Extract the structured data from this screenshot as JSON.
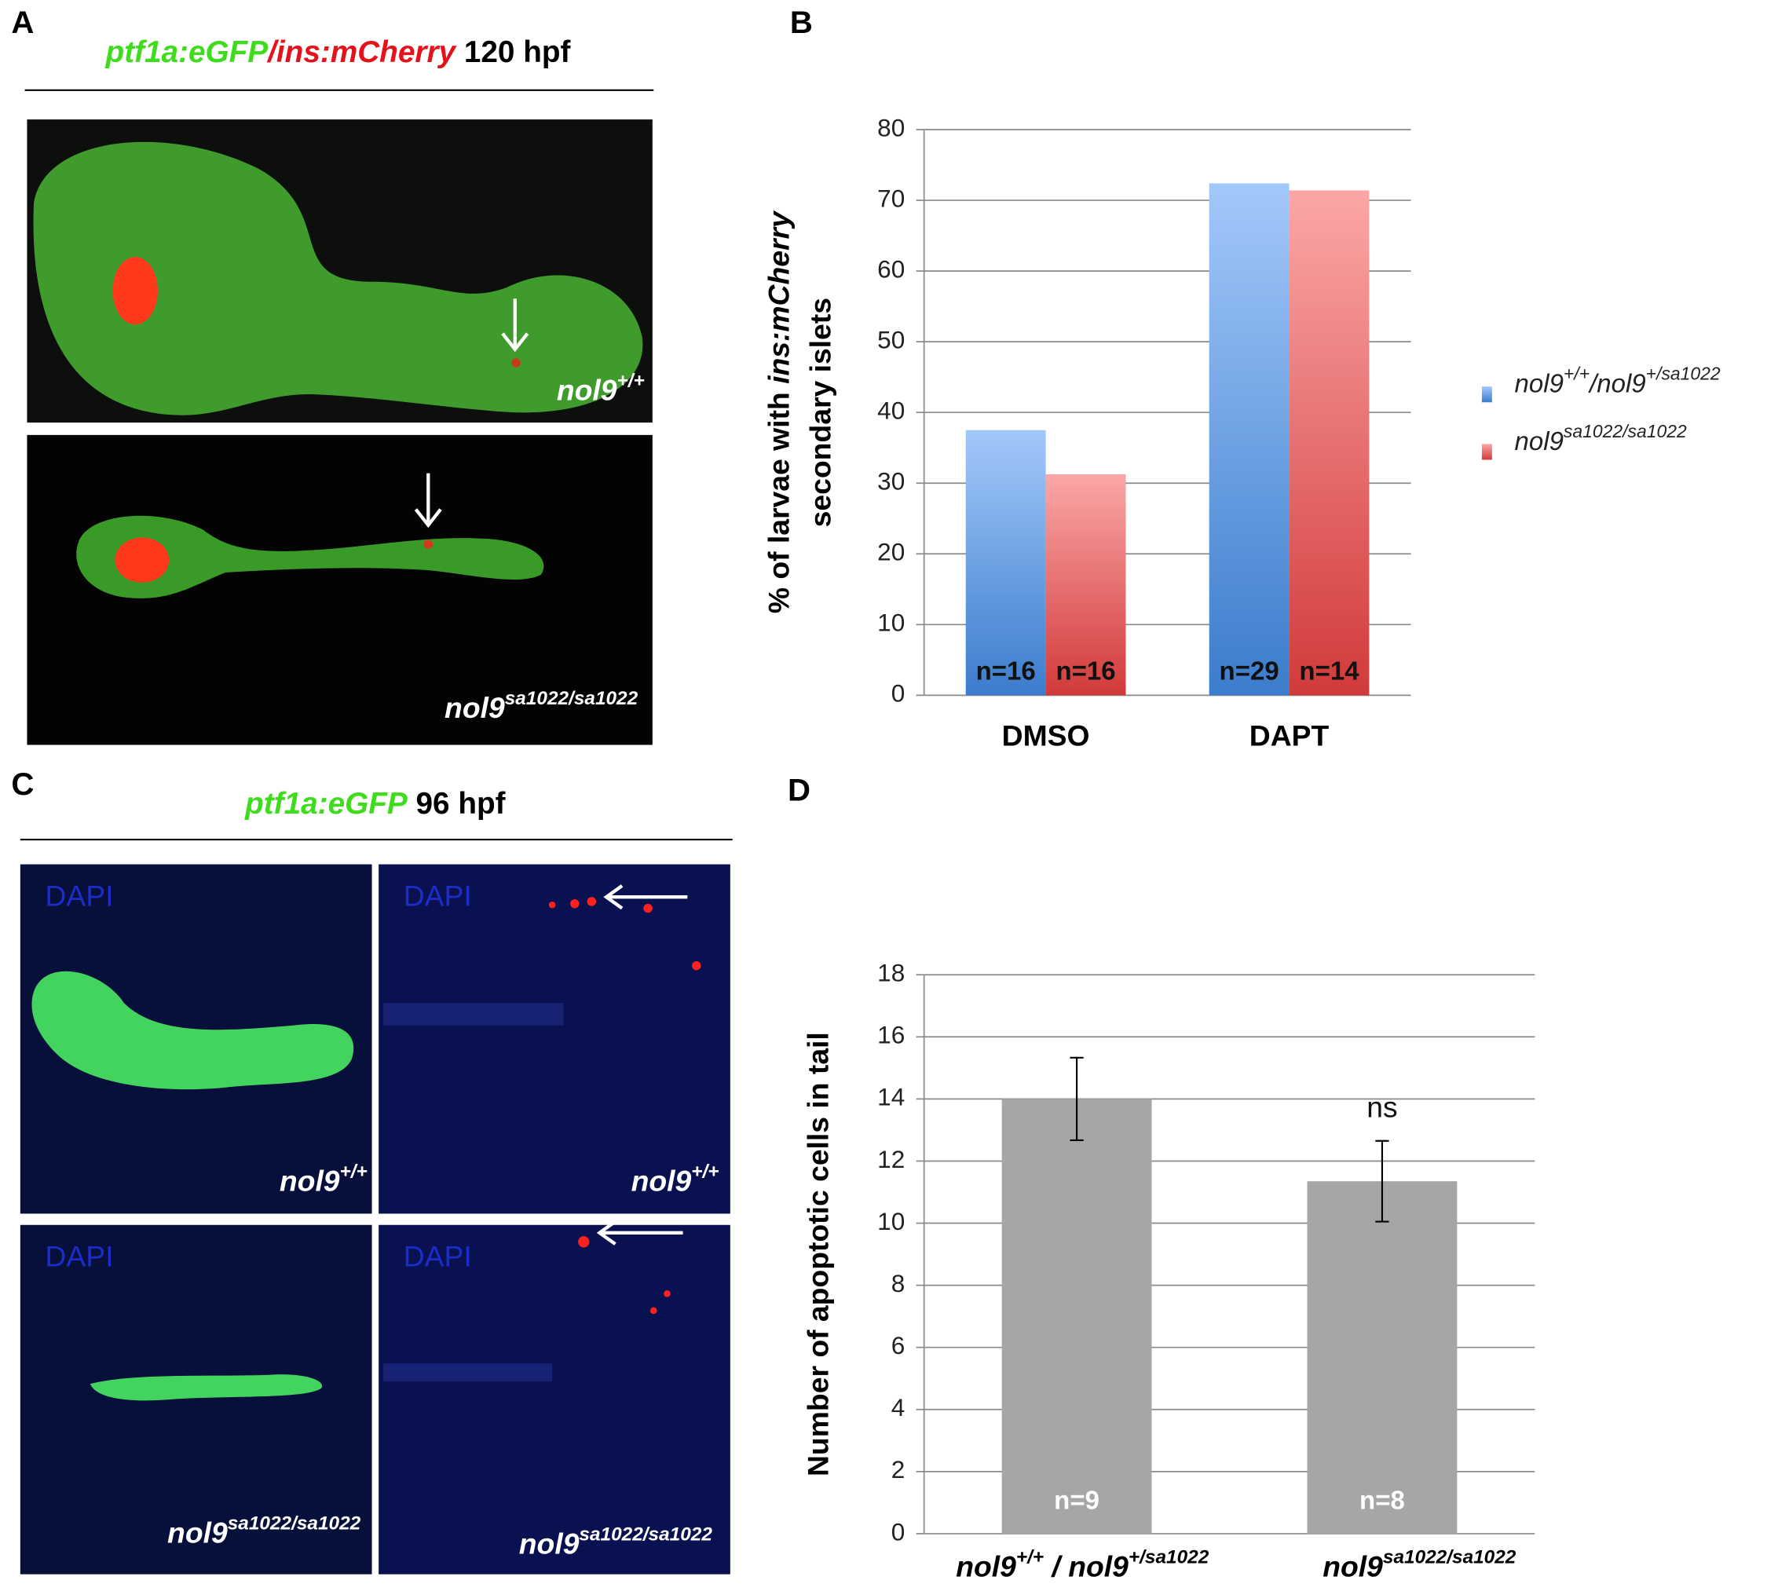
{
  "panels": {
    "A": {
      "label": "A",
      "title": [
        {
          "text": "ptf1a:eGFP",
          "color": "#3fdc1e",
          "italic": true
        },
        {
          "text": "/",
          "color": "#e3121b",
          "italic": true
        },
        {
          "text": "ins:mCherry",
          "color": "#e3121b",
          "italic": true
        },
        {
          "text": " 120 hpf",
          "color": "#000000",
          "italic": false
        }
      ],
      "images": [
        {
          "genotype": [
            "nol9",
            "+/+"
          ]
        },
        {
          "genotype": [
            "nol9",
            "sa1022/sa1022"
          ]
        }
      ]
    },
    "C": {
      "label": "C",
      "title": [
        {
          "text": "ptf1a:eGFP",
          "color": "#3fdc1e",
          "italic": true
        },
        {
          "text": " 96 hpf",
          "color": "#000000",
          "italic": false
        }
      ],
      "images": [
        {
          "stain": "DAPI",
          "genotype": [
            "nol9",
            "+/+"
          ]
        },
        {
          "stain": "DAPI",
          "genotype": [
            "nol9",
            "+/+"
          ]
        },
        {
          "stain": "DAPI",
          "genotype": [
            "nol9",
            "sa1022/sa1022"
          ]
        },
        {
          "stain": "DAPI",
          "genotype": [
            "nol9",
            "sa1022/sa1022"
          ]
        }
      ]
    }
  },
  "chart_data": [
    {
      "type": "bar",
      "panel_label": "B",
      "ylabel": [
        [
          "% of larvae with ",
          "ins:mCherry"
        ],
        [
          "secondary islets"
        ]
      ],
      "categories": [
        "DMSO",
        "DAPT"
      ],
      "series": [
        {
          "name": [
            "nol9",
            "+/+",
            "/nol9",
            "+/sa1022"
          ],
          "color": "#6fa3e8",
          "gradient": [
            "#a3c8fa",
            "#3b7ccc"
          ],
          "values": [
            37.5,
            72.4
          ],
          "n_labels": [
            "n=16",
            "n=29"
          ]
        },
        {
          "name": [
            "nol9",
            "sa1022/sa1022"
          ],
          "color": "#ee7373",
          "gradient": [
            "#fba7a7",
            "#d23a3a"
          ],
          "values": [
            31.25,
            71.4
          ],
          "n_labels": [
            "n=16",
            "n=14"
          ]
        }
      ],
      "ylim": [
        0,
        80
      ],
      "yticks": [
        0,
        10,
        20,
        30,
        40,
        50,
        60,
        70,
        80
      ],
      "grid": true,
      "legend": "right"
    },
    {
      "type": "bar",
      "panel_label": "D",
      "ylabel": [
        [
          "Number of apoptotic cells in tail"
        ]
      ],
      "categories": [
        [
          "nol9",
          "+/+",
          " / nol9",
          "+/sa1022"
        ],
        [
          "nol9",
          "sa1022/sa1022"
        ]
      ],
      "values": [
        14.0,
        11.35
      ],
      "errors": [
        1.33,
        1.3
      ],
      "color": "#a6a6a6",
      "n_labels": [
        "n=9",
        "n=8"
      ],
      "annotations": [
        {
          "text": "ns",
          "category": 1
        }
      ],
      "ylim": [
        0,
        18
      ],
      "yticks": [
        0,
        2,
        4,
        6,
        8,
        10,
        12,
        14,
        16,
        18
      ],
      "grid": true
    }
  ]
}
